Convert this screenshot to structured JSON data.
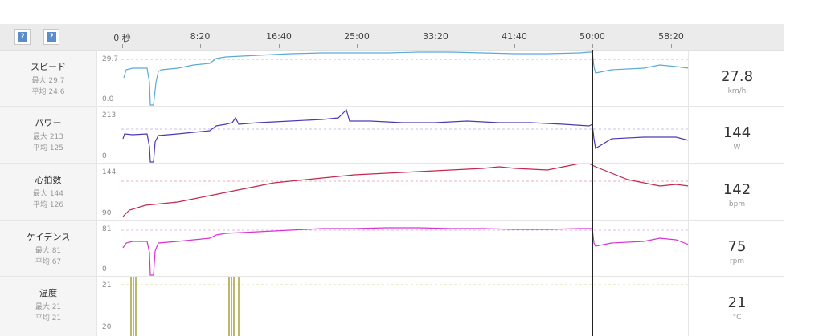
{
  "toolbar": {
    "help_button_1": "?",
    "help_button_2": "?"
  },
  "timeline": {
    "ticks": [
      "0 秒",
      "8:20",
      "16:40",
      "25:00",
      "33:20",
      "41:40",
      "50:00",
      "58:20"
    ]
  },
  "rows": [
    {
      "id": "speed",
      "name": "スピード",
      "max_text": "最大 29.7",
      "avg_text": "平均 24.6",
      "y_max_label": "29.7",
      "y_min_label": "0.0",
      "current_value": "27.8",
      "unit": "km/h",
      "color": "#5aaad6"
    },
    {
      "id": "power",
      "name": "パワー",
      "max_text": "最大 213",
      "avg_text": "平均 125",
      "y_max_label": "213",
      "y_min_label": "0",
      "current_value": "144",
      "unit": "W",
      "color": "#4a3ab8"
    },
    {
      "id": "heart_rate",
      "name": "心拍数",
      "max_text": "最大 144",
      "avg_text": "平均 126",
      "y_max_label": "144",
      "y_min_label": "90",
      "current_value": "142",
      "unit": "bpm",
      "color": "#c4284e"
    },
    {
      "id": "cadence",
      "name": "ケイデンス",
      "max_text": "最大 81",
      "avg_text": "平均 67",
      "y_max_label": "81",
      "y_min_label": "0",
      "current_value": "75",
      "unit": "rpm",
      "color": "#d633d6"
    },
    {
      "id": "temperature",
      "name": "温度",
      "max_text": "最大 21",
      "avg_text": "平均 21",
      "y_max_label": "21",
      "y_min_label": "20",
      "current_value": "21",
      "unit": "°C",
      "color": "#a8a03a"
    }
  ]
}
